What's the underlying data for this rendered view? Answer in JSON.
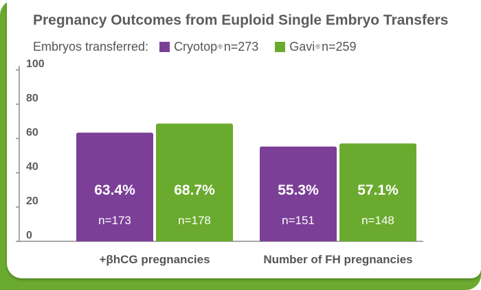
{
  "chart_data": {
    "type": "bar",
    "title": "Pregnancy Outcomes from Euploid Single Embryo Transfers",
    "legend_caption": "Embryos transferred:",
    "categories": [
      "+βhCG pregnancies",
      "Number of FH pregnancies"
    ],
    "series": [
      {
        "name": "Cryotop",
        "mark": "®",
        "n_label": "n=273",
        "color": "#7b3f98",
        "values": [
          63.4,
          55.3
        ],
        "value_labels": [
          "63.4%",
          "55.3%"
        ],
        "counts": [
          "n=173",
          "n=151"
        ]
      },
      {
        "name": "Gavi",
        "mark": "®",
        "n_label": "n=259",
        "color": "#6aaa2e",
        "values": [
          68.7,
          57.1
        ],
        "value_labels": [
          "68.7%",
          "57.1%"
        ],
        "counts": [
          "n=178",
          "n=148"
        ]
      }
    ],
    "yticks": [
      "0",
      "20",
      "40",
      "60",
      "80",
      "100"
    ],
    "ylim": [
      0,
      100
    ],
    "xlabel": "",
    "ylabel": "",
    "grid": false,
    "legend_position": "top-left"
  }
}
